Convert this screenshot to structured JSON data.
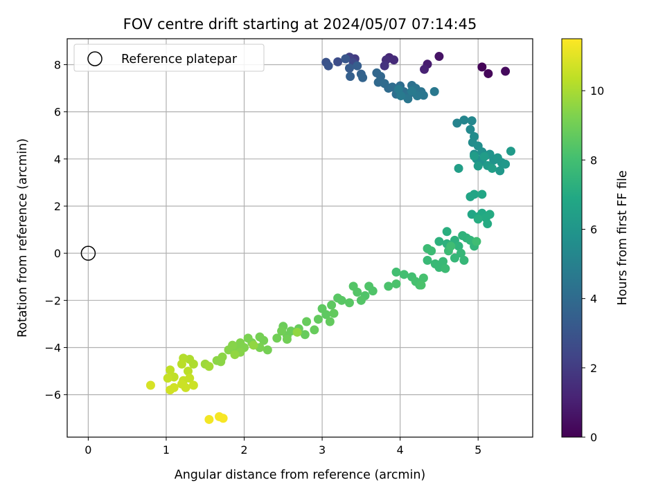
{
  "chart_data": {
    "type": "scatter",
    "title": "FOV centre drift starting at 2024/05/07 07:14:45",
    "xlabel": "Angular distance from reference (arcmin)",
    "ylabel": "Rotation from reference (arcmin)",
    "xlim": [
      -0.27,
      5.7
    ],
    "ylim": [
      -7.8,
      9.1
    ],
    "xticks": [
      0,
      1,
      2,
      3,
      4,
      5
    ],
    "yticks": [
      -6,
      -4,
      -2,
      0,
      2,
      4,
      6,
      8
    ],
    "grid": true,
    "legend": {
      "label": "Reference platepar",
      "position": "top-left"
    },
    "reference_point": {
      "x": 0,
      "y": 0
    },
    "colorbar": {
      "label": "Hours from first FF file",
      "range": [
        0,
        11.5
      ],
      "ticks": [
        0,
        2,
        4,
        6,
        8,
        10
      ],
      "colormap": "viridis"
    },
    "points": [
      {
        "x": 5.05,
        "y": 7.9,
        "t": 0.1
      },
      {
        "x": 5.13,
        "y": 7.62,
        "t": 0.2
      },
      {
        "x": 5.35,
        "y": 7.72,
        "t": 0.3
      },
      {
        "x": 4.5,
        "y": 8.35,
        "t": 0.6
      },
      {
        "x": 4.35,
        "y": 8.02,
        "t": 0.9
      },
      {
        "x": 4.31,
        "y": 7.8,
        "t": 1.1
      },
      {
        "x": 3.86,
        "y": 8.3,
        "t": 1.3
      },
      {
        "x": 3.92,
        "y": 8.2,
        "t": 1.4
      },
      {
        "x": 3.82,
        "y": 8.2,
        "t": 1.5
      },
      {
        "x": 3.8,
        "y": 7.95,
        "t": 1.7
      },
      {
        "x": 3.42,
        "y": 8.25,
        "t": 2.0
      },
      {
        "x": 3.35,
        "y": 8.32,
        "t": 2.2
      },
      {
        "x": 3.4,
        "y": 8.08,
        "t": 2.5
      },
      {
        "x": 3.2,
        "y": 8.12,
        "t": 2.7
      },
      {
        "x": 3.05,
        "y": 8.1,
        "t": 2.9
      },
      {
        "x": 3.08,
        "y": 7.95,
        "t": 3.0
      },
      {
        "x": 3.3,
        "y": 8.25,
        "t": 3.1
      },
      {
        "x": 3.35,
        "y": 7.85,
        "t": 3.3
      },
      {
        "x": 3.45,
        "y": 7.95,
        "t": 3.4
      },
      {
        "x": 3.36,
        "y": 7.5,
        "t": 3.5
      },
      {
        "x": 3.5,
        "y": 7.6,
        "t": 3.6
      },
      {
        "x": 3.52,
        "y": 7.45,
        "t": 3.7
      },
      {
        "x": 3.7,
        "y": 7.65,
        "t": 3.8
      },
      {
        "x": 3.75,
        "y": 7.5,
        "t": 3.8
      },
      {
        "x": 3.72,
        "y": 7.25,
        "t": 3.9
      },
      {
        "x": 3.8,
        "y": 7.2,
        "t": 4.0
      },
      {
        "x": 3.85,
        "y": 7.0,
        "t": 4.0
      },
      {
        "x": 3.9,
        "y": 7.05,
        "t": 4.1
      },
      {
        "x": 4.0,
        "y": 7.1,
        "t": 4.1
      },
      {
        "x": 3.95,
        "y": 6.75,
        "t": 4.2
      },
      {
        "x": 4.05,
        "y": 6.85,
        "t": 4.2
      },
      {
        "x": 4.12,
        "y": 6.78,
        "t": 4.3
      },
      {
        "x": 4.15,
        "y": 7.12,
        "t": 4.3
      },
      {
        "x": 4.2,
        "y": 7.0,
        "t": 4.4
      },
      {
        "x": 4.27,
        "y": 6.85,
        "t": 4.4
      },
      {
        "x": 4.3,
        "y": 6.7,
        "t": 4.5
      },
      {
        "x": 4.1,
        "y": 6.55,
        "t": 4.5
      },
      {
        "x": 4.22,
        "y": 6.68,
        "t": 4.6
      },
      {
        "x": 4.44,
        "y": 6.86,
        "t": 4.6
      },
      {
        "x": 4.15,
        "y": 6.88,
        "t": 4.7
      },
      {
        "x": 3.98,
        "y": 6.95,
        "t": 4.7
      },
      {
        "x": 4.01,
        "y": 6.68,
        "t": 4.7
      },
      {
        "x": 4.73,
        "y": 5.52,
        "t": 5.1
      },
      {
        "x": 4.82,
        "y": 5.65,
        "t": 5.2
      },
      {
        "x": 4.92,
        "y": 5.62,
        "t": 5.3
      },
      {
        "x": 4.9,
        "y": 5.25,
        "t": 5.4
      },
      {
        "x": 4.95,
        "y": 4.95,
        "t": 5.5
      },
      {
        "x": 4.93,
        "y": 4.7,
        "t": 5.5
      },
      {
        "x": 5.0,
        "y": 4.55,
        "t": 5.6
      },
      {
        "x": 4.95,
        "y": 4.2,
        "t": 5.6
      },
      {
        "x": 5.05,
        "y": 4.3,
        "t": 5.7
      },
      {
        "x": 5.1,
        "y": 4.15,
        "t": 5.7
      },
      {
        "x": 4.98,
        "y": 4.0,
        "t": 5.8
      },
      {
        "x": 5.05,
        "y": 3.9,
        "t": 5.8
      },
      {
        "x": 5.15,
        "y": 4.2,
        "t": 5.9
      },
      {
        "x": 5.2,
        "y": 3.95,
        "t": 5.9
      },
      {
        "x": 5.25,
        "y": 4.05,
        "t": 6.0
      },
      {
        "x": 5.3,
        "y": 3.85,
        "t": 6.0
      },
      {
        "x": 5.28,
        "y": 3.5,
        "t": 6.1
      },
      {
        "x": 5.35,
        "y": 3.78,
        "t": 6.1
      },
      {
        "x": 5.42,
        "y": 4.33,
        "t": 6.2
      },
      {
        "x": 5.12,
        "y": 3.72,
        "t": 6.2
      },
      {
        "x": 5.0,
        "y": 3.7,
        "t": 6.3
      },
      {
        "x": 4.95,
        "y": 4.12,
        "t": 6.3
      },
      {
        "x": 5.08,
        "y": 4.1,
        "t": 6.3
      },
      {
        "x": 5.18,
        "y": 3.6,
        "t": 6.4
      },
      {
        "x": 4.75,
        "y": 3.6,
        "t": 6.4
      },
      {
        "x": 4.9,
        "y": 2.4,
        "t": 6.7
      },
      {
        "x": 4.95,
        "y": 2.5,
        "t": 6.7
      },
      {
        "x": 5.05,
        "y": 2.5,
        "t": 6.8
      },
      {
        "x": 4.92,
        "y": 1.65,
        "t": 6.8
      },
      {
        "x": 5.0,
        "y": 1.55,
        "t": 6.9
      },
      {
        "x": 5.05,
        "y": 1.7,
        "t": 6.9
      },
      {
        "x": 5.1,
        "y": 1.5,
        "t": 7.0
      },
      {
        "x": 5.15,
        "y": 1.65,
        "t": 7.0
      },
      {
        "x": 5.12,
        "y": 1.25,
        "t": 7.0
      },
      {
        "x": 5.0,
        "y": 1.45,
        "t": 7.1
      },
      {
        "x": 4.6,
        "y": 0.92,
        "t": 7.2
      },
      {
        "x": 4.5,
        "y": 0.5,
        "t": 7.3
      },
      {
        "x": 4.6,
        "y": 0.4,
        "t": 7.3
      },
      {
        "x": 4.7,
        "y": 0.55,
        "t": 7.3
      },
      {
        "x": 4.75,
        "y": 0.3,
        "t": 7.4
      },
      {
        "x": 4.8,
        "y": 0.75,
        "t": 7.4
      },
      {
        "x": 4.85,
        "y": 0.65,
        "t": 7.4
      },
      {
        "x": 4.9,
        "y": 0.55,
        "t": 7.5
      },
      {
        "x": 4.95,
        "y": 0.3,
        "t": 7.5
      },
      {
        "x": 4.78,
        "y": 0.0,
        "t": 7.6
      },
      {
        "x": 4.7,
        "y": -0.2,
        "t": 7.6
      },
      {
        "x": 4.82,
        "y": -0.3,
        "t": 7.6
      },
      {
        "x": 4.55,
        "y": -0.35,
        "t": 7.7
      },
      {
        "x": 4.45,
        "y": -0.45,
        "t": 7.7
      },
      {
        "x": 4.5,
        "y": -0.6,
        "t": 7.7
      },
      {
        "x": 4.35,
        "y": -0.3,
        "t": 7.7
      },
      {
        "x": 4.58,
        "y": -0.65,
        "t": 7.8
      },
      {
        "x": 4.35,
        "y": 0.2,
        "t": 7.8
      },
      {
        "x": 4.4,
        "y": 0.1,
        "t": 7.8
      },
      {
        "x": 4.62,
        "y": 0.1,
        "t": 7.8
      },
      {
        "x": 4.98,
        "y": 0.5,
        "t": 7.9
      },
      {
        "x": 4.65,
        "y": 0.3,
        "t": 7.9
      },
      {
        "x": 3.95,
        "y": -0.8,
        "t": 8.0
      },
      {
        "x": 4.05,
        "y": -0.9,
        "t": 8.0
      },
      {
        "x": 4.15,
        "y": -1.0,
        "t": 8.0
      },
      {
        "x": 4.2,
        "y": -1.2,
        "t": 8.1
      },
      {
        "x": 4.25,
        "y": -1.35,
        "t": 8.1
      },
      {
        "x": 4.3,
        "y": -1.05,
        "t": 8.1
      },
      {
        "x": 3.95,
        "y": -1.3,
        "t": 8.2
      },
      {
        "x": 3.85,
        "y": -1.4,
        "t": 8.2
      },
      {
        "x": 4.27,
        "y": -1.35,
        "t": 8.2
      },
      {
        "x": 3.6,
        "y": -1.4,
        "t": 8.3
      },
      {
        "x": 3.65,
        "y": -1.6,
        "t": 8.3
      },
      {
        "x": 3.55,
        "y": -1.8,
        "t": 8.3
      },
      {
        "x": 3.45,
        "y": -1.65,
        "t": 8.4
      },
      {
        "x": 3.4,
        "y": -1.4,
        "t": 8.4
      },
      {
        "x": 3.5,
        "y": -2.0,
        "t": 8.4
      },
      {
        "x": 3.35,
        "y": -2.1,
        "t": 8.5
      },
      {
        "x": 3.25,
        "y": -2.0,
        "t": 8.5
      },
      {
        "x": 3.2,
        "y": -1.9,
        "t": 8.5
      },
      {
        "x": 3.12,
        "y": -2.2,
        "t": 8.6
      },
      {
        "x": 3.0,
        "y": -2.35,
        "t": 8.6
      },
      {
        "x": 3.05,
        "y": -2.6,
        "t": 8.6
      },
      {
        "x": 3.15,
        "y": -2.55,
        "t": 8.7
      },
      {
        "x": 2.95,
        "y": -2.8,
        "t": 8.7
      },
      {
        "x": 3.1,
        "y": -2.9,
        "t": 8.7
      },
      {
        "x": 2.9,
        "y": -3.25,
        "t": 8.8
      },
      {
        "x": 2.8,
        "y": -2.9,
        "t": 8.8
      },
      {
        "x": 2.7,
        "y": -3.2,
        "t": 8.8
      },
      {
        "x": 2.78,
        "y": -3.45,
        "t": 8.8
      },
      {
        "x": 2.6,
        "y": -3.3,
        "t": 8.9
      },
      {
        "x": 2.55,
        "y": -3.5,
        "t": 8.9
      },
      {
        "x": 2.5,
        "y": -3.1,
        "t": 8.9
      },
      {
        "x": 2.48,
        "y": -3.3,
        "t": 9.0
      },
      {
        "x": 2.55,
        "y": -3.65,
        "t": 9.0
      },
      {
        "x": 2.42,
        "y": -3.6,
        "t": 9.0
      },
      {
        "x": 2.25,
        "y": -3.7,
        "t": 9.1
      },
      {
        "x": 2.2,
        "y": -3.55,
        "t": 9.1
      },
      {
        "x": 2.3,
        "y": -4.1,
        "t": 9.1
      },
      {
        "x": 2.2,
        "y": -4.0,
        "t": 9.2
      },
      {
        "x": 2.1,
        "y": -3.8,
        "t": 9.2
      },
      {
        "x": 2.05,
        "y": -3.6,
        "t": 9.2
      },
      {
        "x": 2.0,
        "y": -4.0,
        "t": 9.3
      },
      {
        "x": 1.95,
        "y": -3.8,
        "t": 9.3
      },
      {
        "x": 1.9,
        "y": -4.05,
        "t": 9.3
      },
      {
        "x": 1.85,
        "y": -3.9,
        "t": 9.4
      },
      {
        "x": 1.95,
        "y": -4.2,
        "t": 9.4
      },
      {
        "x": 1.8,
        "y": -4.1,
        "t": 9.4
      },
      {
        "x": 1.72,
        "y": -4.4,
        "t": 9.5
      },
      {
        "x": 1.65,
        "y": -4.55,
        "t": 9.5
      },
      {
        "x": 1.7,
        "y": -4.6,
        "t": 9.5
      },
      {
        "x": 2.12,
        "y": -3.9,
        "t": 9.6
      },
      {
        "x": 1.88,
        "y": -4.3,
        "t": 9.6
      },
      {
        "x": 2.68,
        "y": -3.35,
        "t": 9.6
      },
      {
        "x": 1.5,
        "y": -4.7,
        "t": 9.8
      },
      {
        "x": 1.55,
        "y": -4.8,
        "t": 9.9
      },
      {
        "x": 1.3,
        "y": -4.5,
        "t": 10.1
      },
      {
        "x": 1.35,
        "y": -4.7,
        "t": 10.1
      },
      {
        "x": 1.22,
        "y": -4.45,
        "t": 10.2
      },
      {
        "x": 1.2,
        "y": -4.7,
        "t": 10.3
      },
      {
        "x": 1.28,
        "y": -5.0,
        "t": 10.3
      },
      {
        "x": 1.05,
        "y": -4.95,
        "t": 10.4
      },
      {
        "x": 1.1,
        "y": -5.25,
        "t": 10.4
      },
      {
        "x": 1.02,
        "y": -5.3,
        "t": 10.5
      },
      {
        "x": 1.22,
        "y": -5.4,
        "t": 10.5
      },
      {
        "x": 1.3,
        "y": -5.3,
        "t": 10.5
      },
      {
        "x": 1.35,
        "y": -5.6,
        "t": 10.6
      },
      {
        "x": 1.25,
        "y": -5.7,
        "t": 10.6
      },
      {
        "x": 1.2,
        "y": -5.55,
        "t": 10.6
      },
      {
        "x": 1.1,
        "y": -5.7,
        "t": 10.7
      },
      {
        "x": 1.05,
        "y": -5.8,
        "t": 10.7
      },
      {
        "x": 0.8,
        "y": -5.6,
        "t": 10.8
      },
      {
        "x": 1.55,
        "y": -7.05,
        "t": 11.3
      },
      {
        "x": 1.68,
        "y": -6.93,
        "t": 11.35
      },
      {
        "x": 1.73,
        "y": -7.0,
        "t": 11.4
      }
    ]
  }
}
